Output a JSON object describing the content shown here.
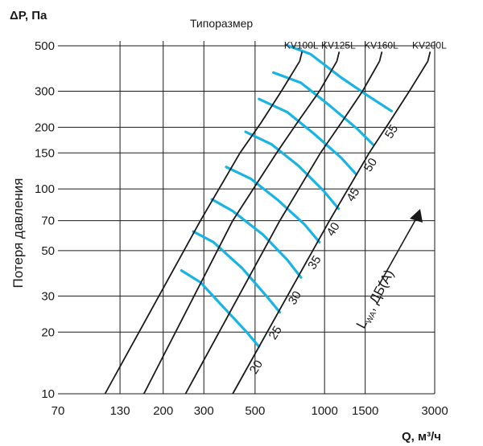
{
  "chart_data": {
    "type": "line",
    "title": "",
    "ylabel_top": "ΔP, Па",
    "ylabel_side": "Потеря давления",
    "xlabel": "Q, м³/ч",
    "series_header": "Типоразмер",
    "x_scale": "log",
    "y_scale": "log",
    "xlim": [
      70,
      3000
    ],
    "ylim": [
      10,
      500
    ],
    "x_ticks": [
      70,
      130,
      200,
      300,
      500,
      1000,
      1500,
      3000
    ],
    "y_ticks": [
      10,
      20,
      30,
      50,
      70,
      100,
      150,
      200,
      300,
      500
    ],
    "grid": true,
    "series": [
      {
        "name": "KV100L",
        "points": [
          [
            112,
            10
          ],
          [
            290,
            70
          ],
          [
            430,
            150
          ],
          [
            530,
            210
          ],
          [
            650,
            300
          ],
          [
            780,
            420
          ]
        ]
      },
      {
        "name": "KV125L",
        "points": [
          [
            165,
            10
          ],
          [
            400,
            70
          ],
          [
            620,
            150
          ],
          [
            760,
            210
          ],
          [
            950,
            300
          ],
          [
            1130,
            420
          ]
        ]
      },
      {
        "name": "KV160L",
        "points": [
          [
            250,
            10
          ],
          [
            640,
            70
          ],
          [
            960,
            150
          ],
          [
            1180,
            210
          ],
          [
            1460,
            300
          ],
          [
            1730,
            420
          ]
        ]
      },
      {
        "name": "KV200L",
        "points": [
          [
            400,
            10
          ],
          [
            1050,
            70
          ],
          [
            1560,
            150
          ],
          [
            1900,
            210
          ],
          [
            2330,
            300
          ],
          [
            2800,
            420
          ]
        ]
      }
    ],
    "sound_lines": [
      {
        "label": "20",
        "points": [
          [
            240,
            40
          ],
          [
            290,
            35
          ],
          [
            370,
            26
          ],
          [
            460,
            20
          ],
          [
            520,
            17
          ]
        ]
      },
      {
        "label": "25",
        "points": [
          [
            270,
            62
          ],
          [
            330,
            55
          ],
          [
            440,
            41
          ],
          [
            560,
            30
          ],
          [
            640,
            25
          ]
        ]
      },
      {
        "label": "30",
        "points": [
          [
            325,
            89
          ],
          [
            400,
            78
          ],
          [
            540,
            60
          ],
          [
            690,
            45
          ],
          [
            790,
            37
          ]
        ]
      },
      {
        "label": "35",
        "points": [
          [
            375,
            128
          ],
          [
            480,
            112
          ],
          [
            630,
            88
          ],
          [
            820,
            67
          ],
          [
            950,
            55
          ]
        ]
      },
      {
        "label": "40",
        "points": [
          [
            455,
            190
          ],
          [
            590,
            165
          ],
          [
            770,
            130
          ],
          [
            990,
            98
          ],
          [
            1150,
            80
          ]
        ]
      },
      {
        "label": "45",
        "points": [
          [
            520,
            275
          ],
          [
            690,
            237
          ],
          [
            900,
            186
          ],
          [
            1180,
            142
          ],
          [
            1370,
            118
          ]
        ]
      },
      {
        "label": "50",
        "points": [
          [
            600,
            370
          ],
          [
            790,
            330
          ],
          [
            1040,
            258
          ],
          [
            1390,
            196
          ],
          [
            1620,
            165
          ]
        ]
      },
      {
        "label": "55",
        "points": [
          [
            680,
            505
          ],
          [
            870,
            455
          ],
          [
            1180,
            350
          ],
          [
            1580,
            280
          ],
          [
            1950,
            240
          ]
        ]
      }
    ],
    "sound_axis_label": "L",
    "sound_axis_subscript": "WA",
    "sound_axis_suffix": ", ДБ(А)",
    "line_color": "#1a1a1a",
    "sound_color": "#19b4e4"
  }
}
